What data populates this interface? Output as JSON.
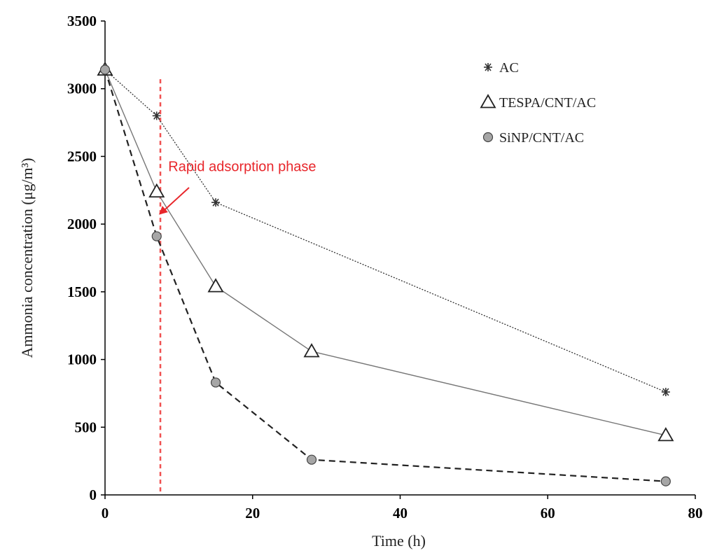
{
  "chart_data": {
    "type": "line",
    "xlabel": "Time (h)",
    "ylabel": "Ammonia concentration  (μg/m³)",
    "xlim": [
      0,
      80
    ],
    "ylim": [
      0,
      3500
    ],
    "xticks": [
      0,
      20,
      40,
      60,
      80
    ],
    "yticks": [
      0,
      500,
      1000,
      1500,
      2000,
      2500,
      3000,
      3500
    ],
    "grid": false,
    "legend_position": "top-right",
    "series": [
      {
        "name": "AC",
        "marker": "asterisk",
        "line_style": "dotted",
        "color": "#333333",
        "x": [
          0,
          7,
          15,
          76
        ],
        "y": [
          3140,
          2800,
          2160,
          760
        ]
      },
      {
        "name": "TESPA/CNT/AC",
        "marker": "triangle",
        "line_style": "solid",
        "color": "#777777",
        "x": [
          0,
          7,
          15,
          28,
          76
        ],
        "y": [
          3140,
          2240,
          1540,
          1060,
          440
        ]
      },
      {
        "name": "SiNP/CNT/AC",
        "marker": "circle",
        "line_style": "dashed",
        "color": "#222222",
        "x": [
          0,
          7,
          15,
          28,
          76
        ],
        "y": [
          3140,
          1910,
          830,
          260,
          100
        ]
      }
    ],
    "reference_line": {
      "x": 7.5,
      "color": "#f05050"
    },
    "annotation": {
      "text": "Rapid adsorption phase",
      "color": "#e8262b",
      "x": 8,
      "y": 2390,
      "arrow_to": {
        "x": 7.3,
        "y": 2070
      }
    }
  }
}
